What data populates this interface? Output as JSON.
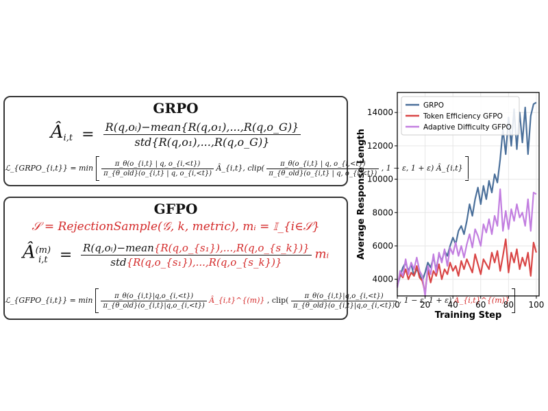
{
  "grpo": {
    "title": "GRPO",
    "adv_lhs": "Â",
    "adv_sub": "i,t",
    "eq_sign": "=",
    "adv_num": "R(q,oᵢ)−mean{R(q,o₁),...,R(q,o_G)}",
    "adv_den": "std{R(q,o₁),...,R(q,o_G)}",
    "loss_lhs": "ℒ_{GRPO_{i,t}} = min",
    "ratio_num": "π_θ(o_{i,t} | q, o_{i,<t})",
    "ratio_den": "π_{θ_old}(o_{i,t} | q, o_{i,<t})",
    "adv_term": "Â_{i,t}, clip(",
    "clip_tail": ", 1 − ε, 1 + ε) Â_{i,t}"
  },
  "gfpo": {
    "title": "GFPO",
    "sample_line": "𝒮 = RejectionSample(𝒢, k, metric),  mᵢ = 𝕀_{i∈𝒮}",
    "adv_lhs": "Â",
    "adv_sub": "i,t",
    "adv_sup": "(m)",
    "eq_sign": "=",
    "adv_num_black": "R(q,oᵢ)−mean",
    "adv_num_red": "{R(q,o_{s₁}),...,R(q,o_{s_k})}",
    "adv_den_black": "std",
    "adv_den_red": "{R(q,o_{s₁}),...,R(q,o_{s_k})}",
    "mask": "mᵢ",
    "loss_lhs": "ℒ_{GFPO_{i,t}} = min",
    "ratio_num": "π_θ(o_{i,t}|q,o_{i,<t})",
    "ratio_den": "π_{θ_old}(o_{i,t}|q,o_{i,<t})",
    "adv_term_red": "Â_{i,t}^{(m)}",
    "clip_mid": ", clip(",
    "clip_tail_black": ", 1 − ε, 1 + ε)",
    "clip_tail_red": "Â_{i,t}^{(m)}"
  },
  "chart_data": {
    "type": "line",
    "xlabel": "Training Step",
    "ylabel": "Average Response Length",
    "xlim": [
      0,
      102
    ],
    "ylim": [
      3000,
      15200
    ],
    "xticks": [
      0,
      20,
      40,
      60,
      80,
      100
    ],
    "yticks": [
      4000,
      6000,
      8000,
      10000,
      12000,
      14000
    ],
    "grid": true,
    "legend_position": "top-left",
    "series": [
      {
        "name": "GRPO",
        "color": "#4a6f9a",
        "x": [
          0,
          2,
          4,
          6,
          8,
          10,
          12,
          14,
          16,
          18,
          20,
          22,
          24,
          26,
          28,
          30,
          32,
          34,
          36,
          38,
          40,
          42,
          44,
          46,
          48,
          50,
          52,
          54,
          56,
          58,
          60,
          62,
          64,
          66,
          68,
          70,
          72,
          74,
          76,
          78,
          80,
          82,
          84,
          86,
          88,
          90,
          92,
          94,
          96,
          98,
          100
        ],
        "values": [
          3600,
          4200,
          4700,
          5000,
          4500,
          4900,
          4200,
          4600,
          4300,
          3900,
          4400,
          5000,
          4700,
          5300,
          4600,
          5500,
          5100,
          5700,
          5400,
          6000,
          6500,
          6100,
          6900,
          7200,
          6700,
          7500,
          8500,
          7800,
          8800,
          9500,
          8500,
          9600,
          8800,
          9900,
          9200,
          10300,
          9800,
          11200,
          13000,
          11500,
          13700,
          12000,
          14200,
          11800,
          14000,
          12200,
          14300,
          11500,
          13800,
          14500,
          14600
        ]
      },
      {
        "name": "Token Efficiency GFPO",
        "color": "#d94545",
        "x": [
          0,
          2,
          4,
          6,
          8,
          10,
          12,
          14,
          16,
          18,
          20,
          22,
          24,
          26,
          28,
          30,
          32,
          34,
          36,
          38,
          40,
          42,
          44,
          46,
          48,
          50,
          52,
          54,
          56,
          58,
          60,
          62,
          64,
          66,
          68,
          70,
          72,
          74,
          76,
          78,
          80,
          82,
          84,
          86,
          88,
          90,
          92,
          94,
          96,
          98,
          100
        ],
        "values": [
          3700,
          4300,
          4100,
          4600,
          4000,
          4400,
          4200,
          4800,
          4100,
          3900,
          3200,
          4600,
          3800,
          4500,
          4200,
          4900,
          4000,
          4600,
          4300,
          5000,
          4500,
          4800,
          4200,
          5100,
          4600,
          5200,
          4800,
          4400,
          5500,
          4900,
          4300,
          5200,
          4900,
          4600,
          5600,
          5000,
          5700,
          4500,
          5400,
          6400,
          4400,
          5600,
          5000,
          5800,
          4600,
          5300,
          4800,
          5600,
          4200,
          6200,
          5600
        ]
      },
      {
        "name": "Adaptive Difficulty GFPO",
        "color": "#c27ee0",
        "x": [
          0,
          2,
          4,
          6,
          8,
          10,
          12,
          14,
          16,
          18,
          20,
          22,
          24,
          26,
          28,
          30,
          32,
          34,
          36,
          38,
          40,
          42,
          44,
          46,
          48,
          50,
          52,
          54,
          56,
          58,
          60,
          62,
          64,
          66,
          68,
          70,
          72,
          74,
          76,
          78,
          80,
          82,
          84,
          86,
          88,
          90,
          92,
          94,
          96,
          98,
          100
        ],
        "values": [
          3500,
          4500,
          4200,
          5200,
          4300,
          5000,
          4600,
          5300,
          4500,
          4200,
          3000,
          4800,
          4300,
          5500,
          4400,
          5600,
          5000,
          5800,
          4800,
          5900,
          5500,
          6200,
          5400,
          6000,
          5300,
          6100,
          6700,
          5900,
          7000,
          6600,
          6000,
          7300,
          6800,
          7600,
          6700,
          7800,
          7200,
          9400,
          6900,
          8100,
          7000,
          8200,
          7500,
          8500,
          7700,
          8000,
          7200,
          8800,
          6900,
          9200,
          9100
        ]
      }
    ]
  }
}
